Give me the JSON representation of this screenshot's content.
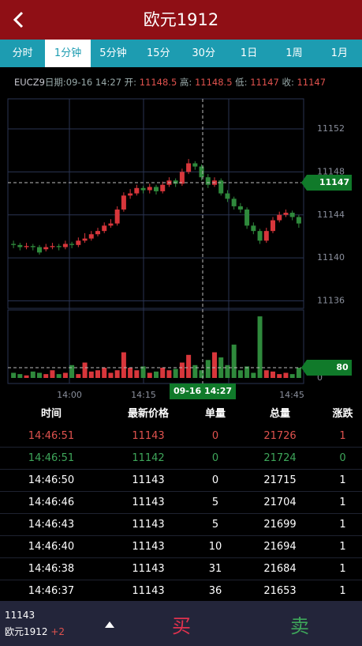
{
  "header": {
    "title": "欧元1912"
  },
  "tabs": {
    "items": [
      "分时",
      "1分钟",
      "5分钟",
      "15分",
      "30分",
      "1日",
      "1周",
      "1月"
    ],
    "active": 1
  },
  "info": {
    "symbol": "EUCZ9",
    "date_label": "日期:",
    "date": "09-16 14:27",
    "open_label": "开:",
    "open": "11148.5",
    "high_label": "高:",
    "high": "11148.5",
    "low_label": "低:",
    "low": "11147",
    "close_label": "收:",
    "close": "11147"
  },
  "chart": {
    "type": "candlestick",
    "ylim": [
      11135.3,
      11154.8
    ],
    "yticks": [
      11136,
      11140,
      11144,
      11148,
      11152
    ],
    "current_price": 11147,
    "vlim": [
      0,
      530
    ],
    "vticks": [
      0
    ],
    "current_volume": 80,
    "xticks": [
      "14:00",
      "14:15",
      "14:45"
    ],
    "cursor_label": "09-16 14:27",
    "up_color": "#d8363b",
    "down_color": "#2f8a3c",
    "candles": [
      [
        11141.3,
        11141.2,
        11141.6,
        11140.9
      ],
      [
        11141.2,
        11141.0,
        11141.4,
        11140.7
      ],
      [
        11141.0,
        11141.1,
        11141.4,
        11140.8
      ],
      [
        11141.1,
        11141.0,
        11141.3,
        11140.7
      ],
      [
        11141.0,
        11140.5,
        11141.2,
        11140.3
      ],
      [
        11140.8,
        11141.0,
        11141.3,
        11140.6
      ],
      [
        11141.0,
        11141.1,
        11141.4,
        11140.8
      ],
      [
        11141.1,
        11141.0,
        11141.3,
        11140.7
      ],
      [
        11141.0,
        11141.3,
        11141.6,
        11140.8
      ],
      [
        11141.3,
        11141.2,
        11141.5,
        11140.9
      ],
      [
        11141.2,
        11141.6,
        11141.9,
        11141.0
      ],
      [
        11141.6,
        11141.8,
        11142.3,
        11141.4
      ],
      [
        11141.8,
        11142.2,
        11142.5,
        11141.6
      ],
      [
        11142.2,
        11142.5,
        11142.8,
        11142.0
      ],
      [
        11142.5,
        11143.0,
        11143.3,
        11142.3
      ],
      [
        11143.0,
        11143.2,
        11143.6,
        11142.8
      ],
      [
        11143.2,
        11144.5,
        11144.8,
        11143.0
      ],
      [
        11144.5,
        11145.8,
        11146.1,
        11144.3
      ],
      [
        11145.8,
        11146.0,
        11146.4,
        11145.5
      ],
      [
        11146.0,
        11146.5,
        11146.8,
        11145.8
      ],
      [
        11146.5,
        11146.3,
        11146.7,
        11146.0
      ],
      [
        11146.3,
        11146.6,
        11146.9,
        11146.0
      ],
      [
        11146.6,
        11146.2,
        11146.8,
        11145.9
      ],
      [
        11146.2,
        11146.8,
        11147.1,
        11146.0
      ],
      [
        11146.8,
        11147.2,
        11147.5,
        11146.6
      ],
      [
        11147.2,
        11146.9,
        11147.4,
        11146.6
      ],
      [
        11146.9,
        11148.0,
        11148.3,
        11146.7
      ],
      [
        11148.0,
        11148.8,
        11149.2,
        11147.8
      ],
      [
        11148.8,
        11148.5,
        11149.0,
        11148.2
      ],
      [
        11148.5,
        11147.5,
        11148.7,
        11147.2
      ],
      [
        11147.5,
        11146.8,
        11147.8,
        11146.5
      ],
      [
        11146.8,
        11147.2,
        11147.5,
        11146.6
      ],
      [
        11147.2,
        11146.0,
        11147.4,
        11145.8
      ],
      [
        11146.0,
        11145.5,
        11146.3,
        11145.2
      ],
      [
        11145.5,
        11144.8,
        11145.7,
        11144.5
      ],
      [
        11144.8,
        11144.5,
        11145.1,
        11144.2
      ],
      [
        11144.5,
        11143.0,
        11144.7,
        11142.7
      ],
      [
        11143.0,
        11142.5,
        11143.3,
        11142.2
      ],
      [
        11142.5,
        11141.6,
        11142.7,
        11141.3
      ],
      [
        11141.6,
        11142.5,
        11142.8,
        11141.4
      ],
      [
        11142.5,
        11143.5,
        11143.8,
        11142.3
      ],
      [
        11143.5,
        11144.0,
        11144.3,
        11143.3
      ],
      [
        11144.0,
        11144.2,
        11144.5,
        11143.8
      ],
      [
        11144.2,
        11143.8,
        11144.4,
        11143.5
      ],
      [
        11143.8,
        11143.2,
        11144.0,
        11142.8
      ]
    ],
    "volumes": [
      40,
      30,
      20,
      50,
      40,
      30,
      60,
      30,
      40,
      100,
      30,
      120,
      50,
      60,
      80,
      40,
      60,
      200,
      80,
      60,
      90,
      40,
      50,
      80,
      60,
      70,
      120,
      180,
      100,
      60,
      140,
      200,
      160,
      100,
      260,
      60,
      90,
      40,
      480,
      60,
      50,
      30,
      40,
      30,
      80
    ]
  },
  "table": {
    "columns": [
      "时间",
      "最新价格",
      "单量",
      "总量",
      "涨跌"
    ],
    "rows": [
      [
        "14:46:51",
        "11143",
        "0",
        "21726",
        "1"
      ],
      [
        "14:46:51",
        "11142",
        "0",
        "21724",
        "0"
      ],
      [
        "14:46:50",
        "11143",
        "0",
        "21715",
        "1"
      ],
      [
        "14:46:46",
        "11143",
        "5",
        "21704",
        "1"
      ],
      [
        "14:46:43",
        "11143",
        "5",
        "21699",
        "1"
      ],
      [
        "14:46:40",
        "11143",
        "10",
        "21694",
        "1"
      ],
      [
        "14:46:38",
        "11143",
        "31",
        "21684",
        "1"
      ],
      [
        "14:46:37",
        "11143",
        "36",
        "21653",
        "1"
      ]
    ],
    "row_colors": [
      "#e0524e",
      "#3ea65a",
      "#ffffff",
      "#ffffff",
      "#ffffff",
      "#ffffff",
      "#ffffff",
      "#ffffff"
    ]
  },
  "footer": {
    "price": "11143",
    "name": "欧元1912",
    "change": "+2",
    "buy": "买",
    "sell": "卖"
  }
}
